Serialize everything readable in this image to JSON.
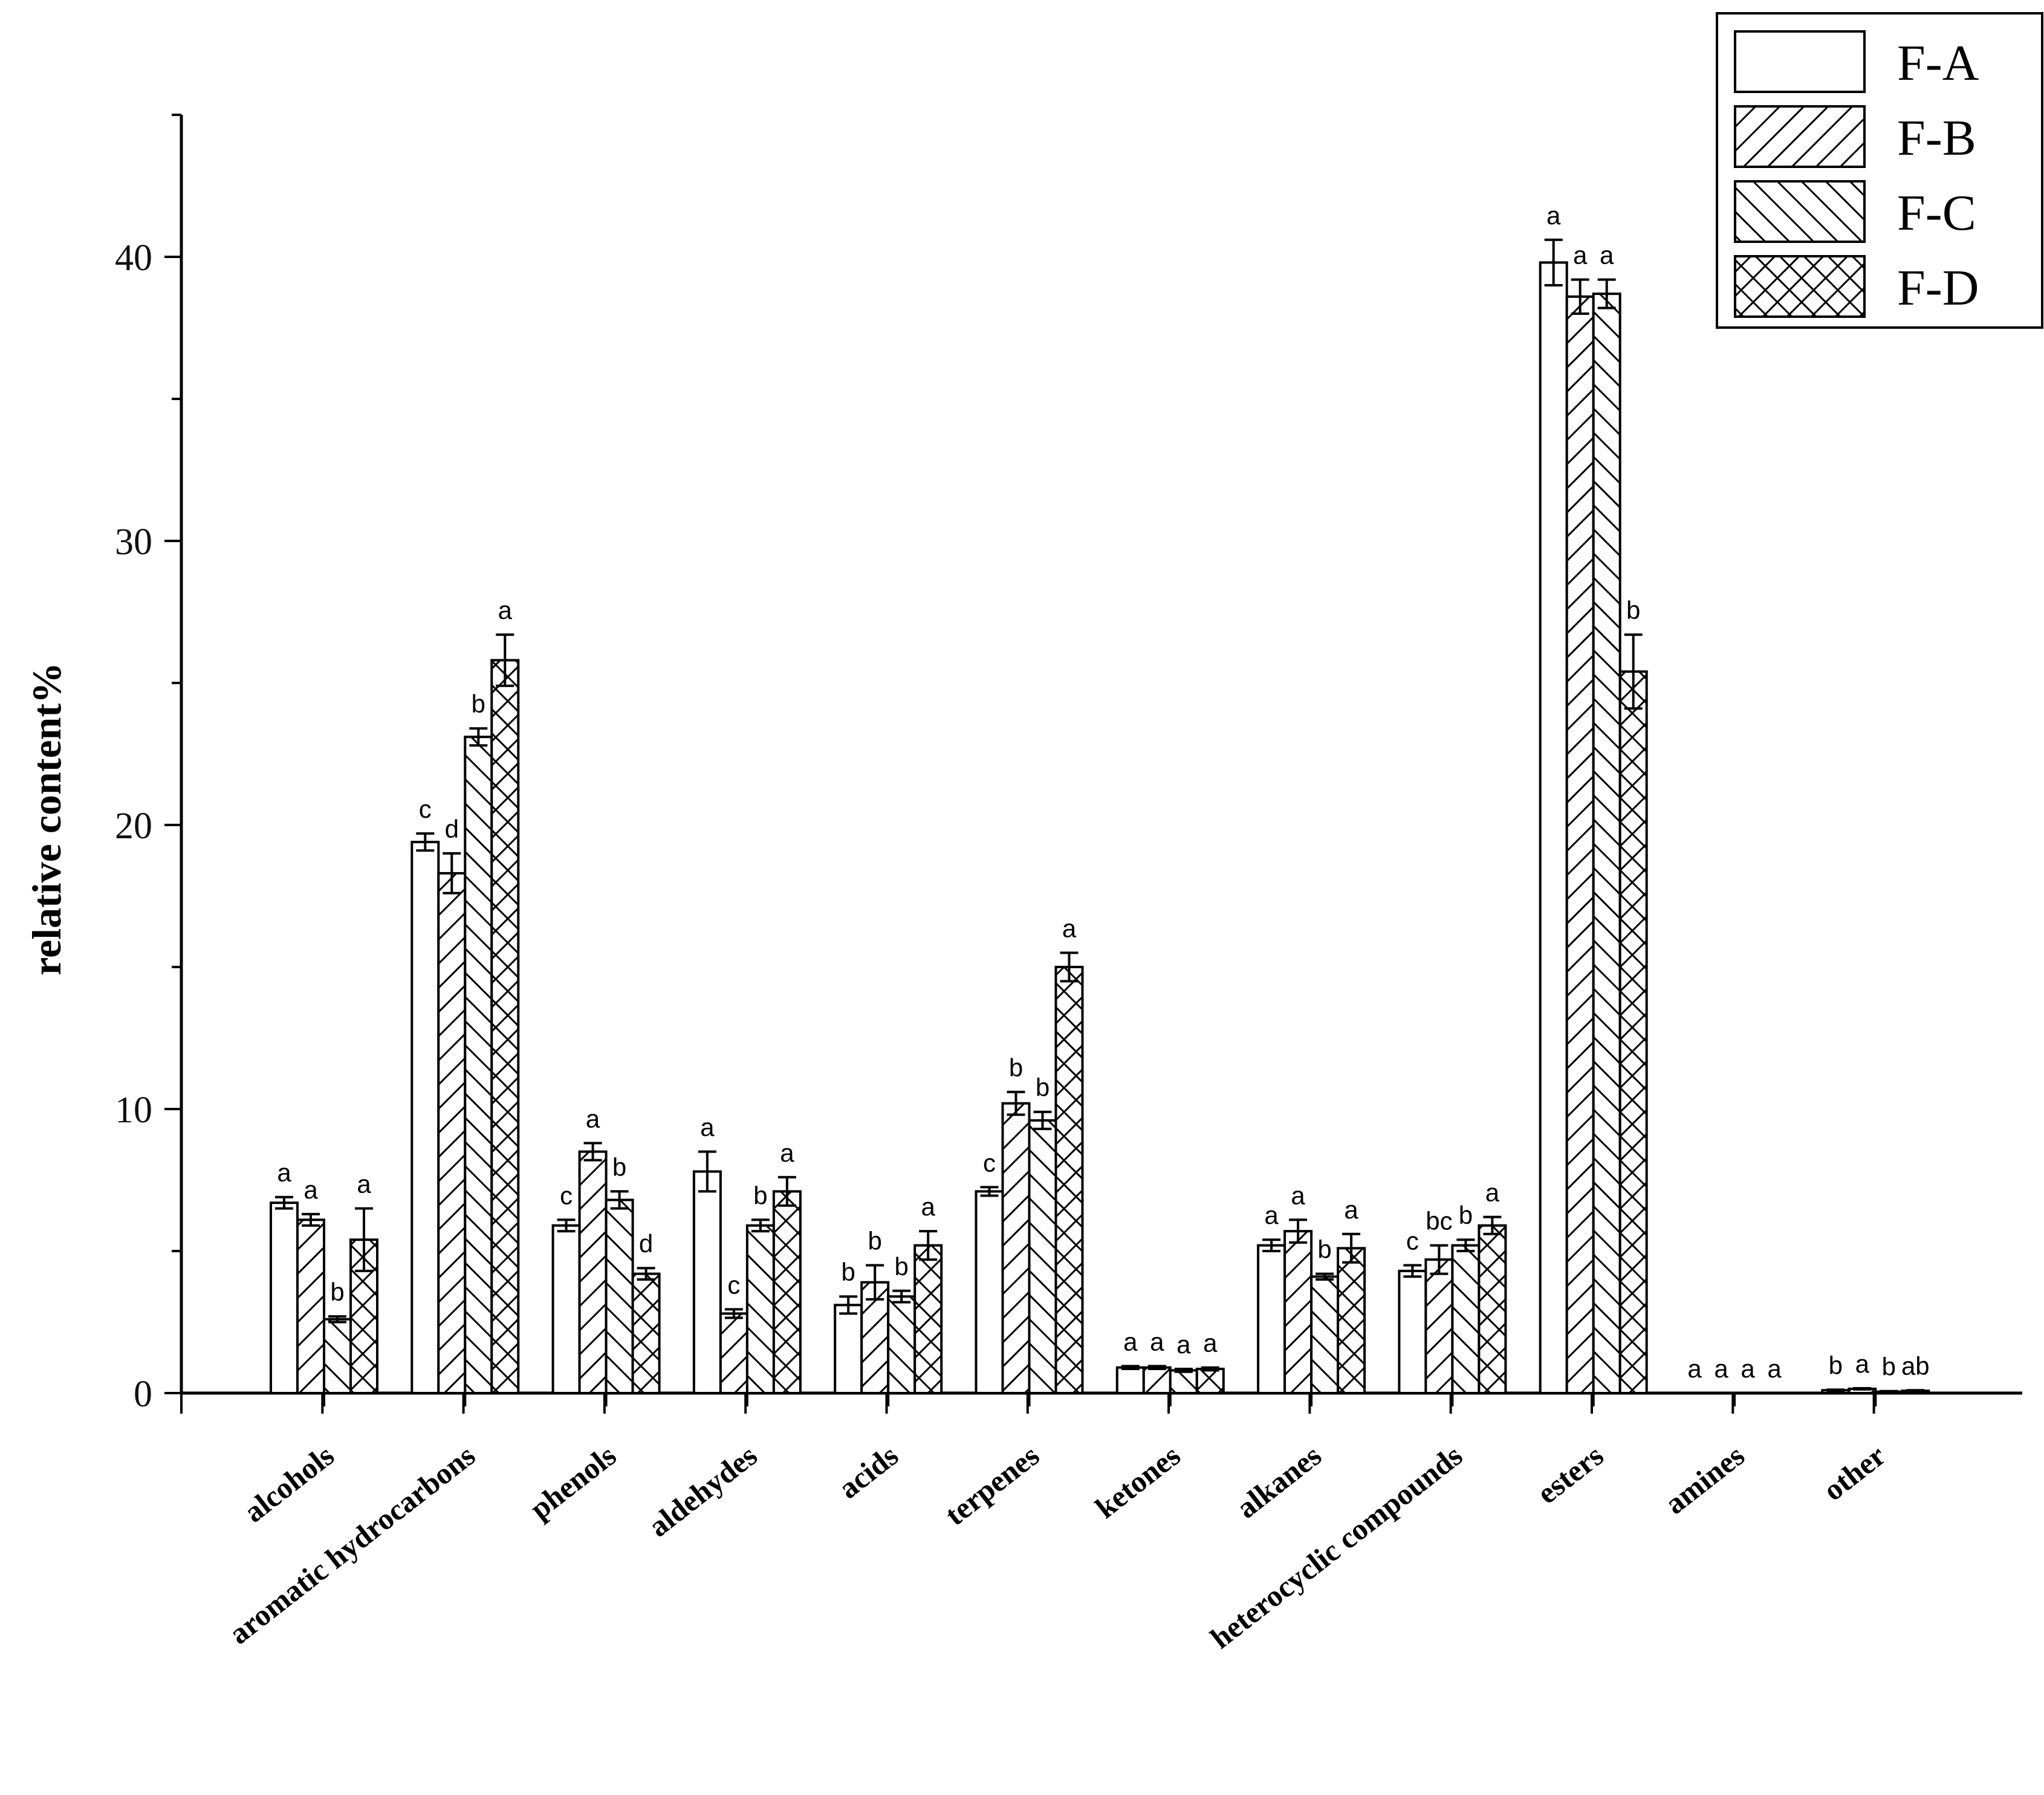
{
  "chart_data": {
    "type": "bar",
    "ylabel": "relative content%",
    "xlabel": "",
    "ylim": [
      0,
      45
    ],
    "yticks": [
      0,
      10,
      20,
      30,
      40
    ],
    "grid": false,
    "legend_position": "top-right",
    "categories": [
      "alcohols",
      "aromatic hydrocarbons",
      "phenols",
      "aldehydes",
      "acids",
      "terpenes",
      "ketones",
      "alkanes",
      "heterocyclic compounds",
      "esters",
      "amines",
      "other"
    ],
    "series": [
      {
        "name": "F-A",
        "pattern": "none",
        "values": [
          6.7,
          19.4,
          5.9,
          7.8,
          3.1,
          7.1,
          0.9,
          5.2,
          4.3,
          39.8,
          0.0,
          0.1
        ],
        "errors": [
          0.2,
          0.3,
          0.2,
          0.7,
          0.3,
          0.15,
          0.05,
          0.2,
          0.2,
          0.8,
          0.0,
          0.02
        ],
        "letters": [
          "a",
          "c",
          "c",
          "a",
          "b",
          "c",
          "a",
          "a",
          "c",
          "a",
          "a",
          "b"
        ]
      },
      {
        "name": "F-B",
        "pattern": "forward-diagonal",
        "values": [
          6.1,
          18.3,
          8.5,
          2.8,
          3.9,
          10.2,
          0.9,
          5.7,
          4.7,
          38.6,
          0.0,
          0.15
        ],
        "errors": [
          0.2,
          0.7,
          0.3,
          0.15,
          0.6,
          0.4,
          0.05,
          0.4,
          0.5,
          0.6,
          0.0,
          0.02
        ],
        "letters": [
          "a",
          "d",
          "a",
          "c",
          "b",
          "b",
          "a",
          "a",
          "bc",
          "a",
          "a",
          "a"
        ]
      },
      {
        "name": "F-C",
        "pattern": "back-diagonal",
        "values": [
          2.6,
          23.1,
          6.8,
          5.9,
          3.4,
          9.6,
          0.8,
          4.1,
          5.2,
          38.7,
          0.0,
          0.05
        ],
        "errors": [
          0.1,
          0.3,
          0.3,
          0.2,
          0.2,
          0.3,
          0.05,
          0.1,
          0.2,
          0.5,
          0.0,
          0.02
        ],
        "letters": [
          "b",
          "b",
          "b",
          "b",
          "b",
          "b",
          "a",
          "b",
          "b",
          "a",
          "a",
          "b"
        ]
      },
      {
        "name": "F-D",
        "pattern": "crosshatch",
        "values": [
          5.4,
          25.8,
          4.2,
          7.1,
          5.2,
          15.0,
          0.85,
          5.1,
          5.9,
          25.4,
          0.0,
          0.08
        ],
        "errors": [
          1.1,
          0.9,
          0.2,
          0.5,
          0.5,
          0.5,
          0.05,
          0.5,
          0.3,
          1.3,
          0.0,
          0.02
        ],
        "letters": [
          "a",
          "a",
          "d",
          "a",
          "a",
          "a",
          "a",
          "a",
          "a",
          "b",
          "a",
          "ab"
        ]
      }
    ]
  }
}
